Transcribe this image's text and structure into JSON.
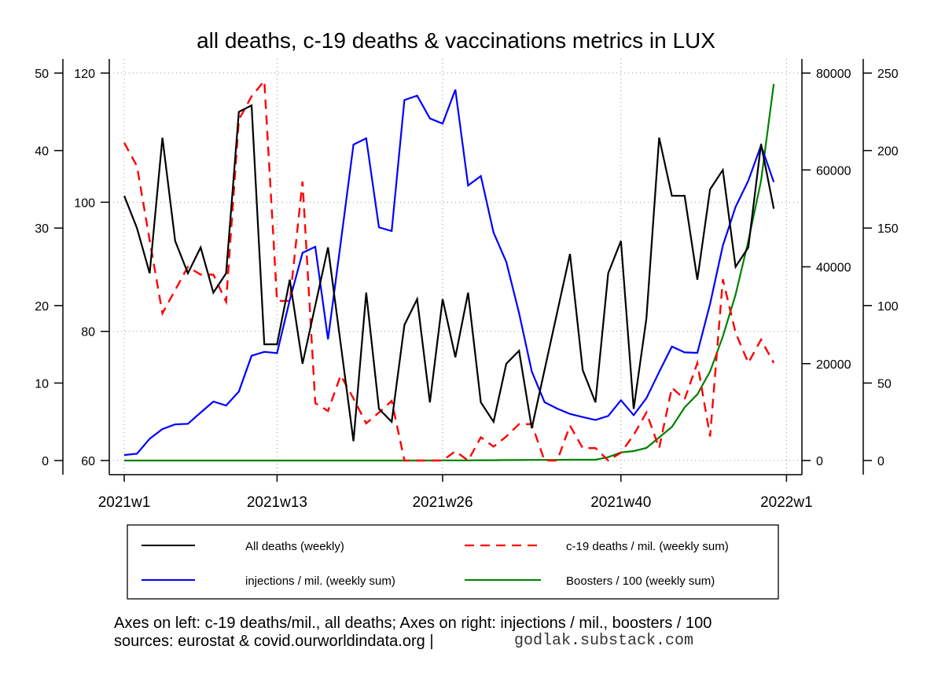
{
  "chart_data": {
    "type": "line",
    "title": "all deaths, c-19 deaths & vaccinations metrics in LUX",
    "xlabel": "",
    "x_tick_labels": [
      "2021w1",
      "2021w13",
      "2021w26",
      "2021w40",
      "2022w1"
    ],
    "x_tick_weeks": [
      1,
      13,
      26,
      40,
      53
    ],
    "x": [
      "2021w1",
      "2021w2",
      "2021w3",
      "2021w4",
      "2021w5",
      "2021w6",
      "2021w7",
      "2021w8",
      "2021w9",
      "2021w10",
      "2021w11",
      "2021w12",
      "2021w13",
      "2021w14",
      "2021w15",
      "2021w16",
      "2021w17",
      "2021w18",
      "2021w19",
      "2021w20",
      "2021w21",
      "2021w22",
      "2021w23",
      "2021w24",
      "2021w25",
      "2021w26",
      "2021w27",
      "2021w28",
      "2021w29",
      "2021w30",
      "2021w31",
      "2021w32",
      "2021w33",
      "2021w34",
      "2021w35",
      "2021w36",
      "2021w37",
      "2021w38",
      "2021w39",
      "2021w40",
      "2021w41",
      "2021w42",
      "2021w43",
      "2021w44",
      "2021w45",
      "2021w46",
      "2021w47",
      "2021w48",
      "2021w49",
      "2021w50",
      "2021w51",
      "2021w52"
    ],
    "axes": {
      "left_outer": {
        "label": "c-19 deaths/mil.",
        "range": [
          0,
          50
        ],
        "ticks": [
          "0",
          "10",
          "20",
          "30",
          "40",
          "50"
        ]
      },
      "left_inner": {
        "label": "all deaths",
        "range": [
          60,
          120
        ],
        "ticks": [
          "60",
          "80",
          "100",
          "120"
        ]
      },
      "right_inner": {
        "label": "injections / mil.",
        "range": [
          0,
          80000
        ],
        "ticks": [
          "0",
          "20000",
          "40000",
          "60000",
          "80000"
        ]
      },
      "right_outer": {
        "label": "boosters / 100",
        "range": [
          0,
          250
        ],
        "ticks": [
          "0",
          "50",
          "100",
          "150",
          "200",
          "250"
        ]
      }
    },
    "grid": true,
    "legend_position": "bottom",
    "series": [
      {
        "name": "All deaths (weekly)",
        "axis": "left_inner",
        "color": "#000000",
        "dash": false,
        "values": [
          101,
          96,
          89,
          110,
          94,
          89,
          93,
          86,
          89,
          114,
          115,
          78,
          78,
          88,
          75,
          84,
          93,
          78,
          63,
          86,
          68,
          66,
          81,
          85,
          69,
          85,
          76,
          86,
          69,
          66,
          75,
          77,
          65,
          74,
          83,
          92,
          74,
          69,
          89,
          94,
          68,
          82,
          110,
          101,
          101,
          88,
          102,
          105,
          90,
          93,
          109,
          99
        ]
      },
      {
        "name": "c-19 deaths / mil. (weekly sum)",
        "axis": "left_outer",
        "color": "#ff0000",
        "dash": true,
        "values": [
          41,
          38,
          28.4,
          19,
          22,
          25,
          24,
          24,
          20.5,
          44,
          47,
          49,
          20.6,
          20.6,
          36,
          7.4,
          6.4,
          11,
          8,
          4.8,
          6.2,
          7.7,
          0,
          0,
          0,
          0,
          1.2,
          0,
          3,
          1.8,
          3.1,
          4.7,
          4.7,
          0,
          0,
          4.5,
          1.6,
          1.6,
          0,
          1,
          3.3,
          6.2,
          1.6,
          9.4,
          7.9,
          12.6,
          3.1,
          23.4,
          16.5,
          12.6,
          15.6,
          12.6
        ]
      },
      {
        "name": "injections / mil. (weekly sum)",
        "axis": "right_inner",
        "color": "#0000ff",
        "dash": false,
        "values": [
          1140,
          1410,
          4500,
          6490,
          7460,
          7580,
          9900,
          12170,
          11360,
          14230,
          21630,
          22440,
          22180,
          33150,
          42890,
          44140,
          25040,
          45000,
          65230,
          66530,
          48150,
          47380,
          74430,
          75350,
          70640,
          69560,
          76590,
          56800,
          58740,
          47060,
          41010,
          30460,
          18390,
          12060,
          10710,
          9630,
          8980,
          8380,
          9200,
          12440,
          9360,
          12870,
          18280,
          23530,
          22330,
          22230,
          32350,
          44360,
          52360,
          57770,
          65070,
          57500
        ]
      },
      {
        "name": "Boosters / 100 (weekly sum)",
        "axis": "right_outer",
        "color": "#008000",
        "dash": false,
        "values": [
          0,
          0,
          0,
          0,
          0,
          0,
          0,
          0,
          0,
          0,
          0,
          0,
          0,
          0,
          0,
          0,
          0,
          0,
          0,
          0,
          0,
          0,
          0,
          0,
          0,
          0.1,
          0.1,
          0.1,
          0.2,
          0.2,
          0.3,
          0.3,
          0.4,
          0.4,
          0.4,
          0.5,
          0.5,
          0.5,
          2.2,
          5.2,
          6.1,
          8.1,
          14.9,
          21.7,
          34.3,
          42.7,
          57.5,
          80,
          107,
          141.6,
          180.5,
          243
        ]
      }
    ]
  },
  "legend": {
    "items": [
      "All deaths (weekly)",
      "c-19 deaths / mil. (weekly sum)",
      "injections / mil. (weekly sum)",
      "Boosters / 100 (weekly sum)"
    ]
  },
  "footer": {
    "line1": "Axes on left: c-19 deaths/mil., all deaths; Axes on right: injections / mil., boosters / 100",
    "line2": "sources: eurostat & covid.ourworldindata.org |",
    "credit": "godlak.substack.com"
  }
}
